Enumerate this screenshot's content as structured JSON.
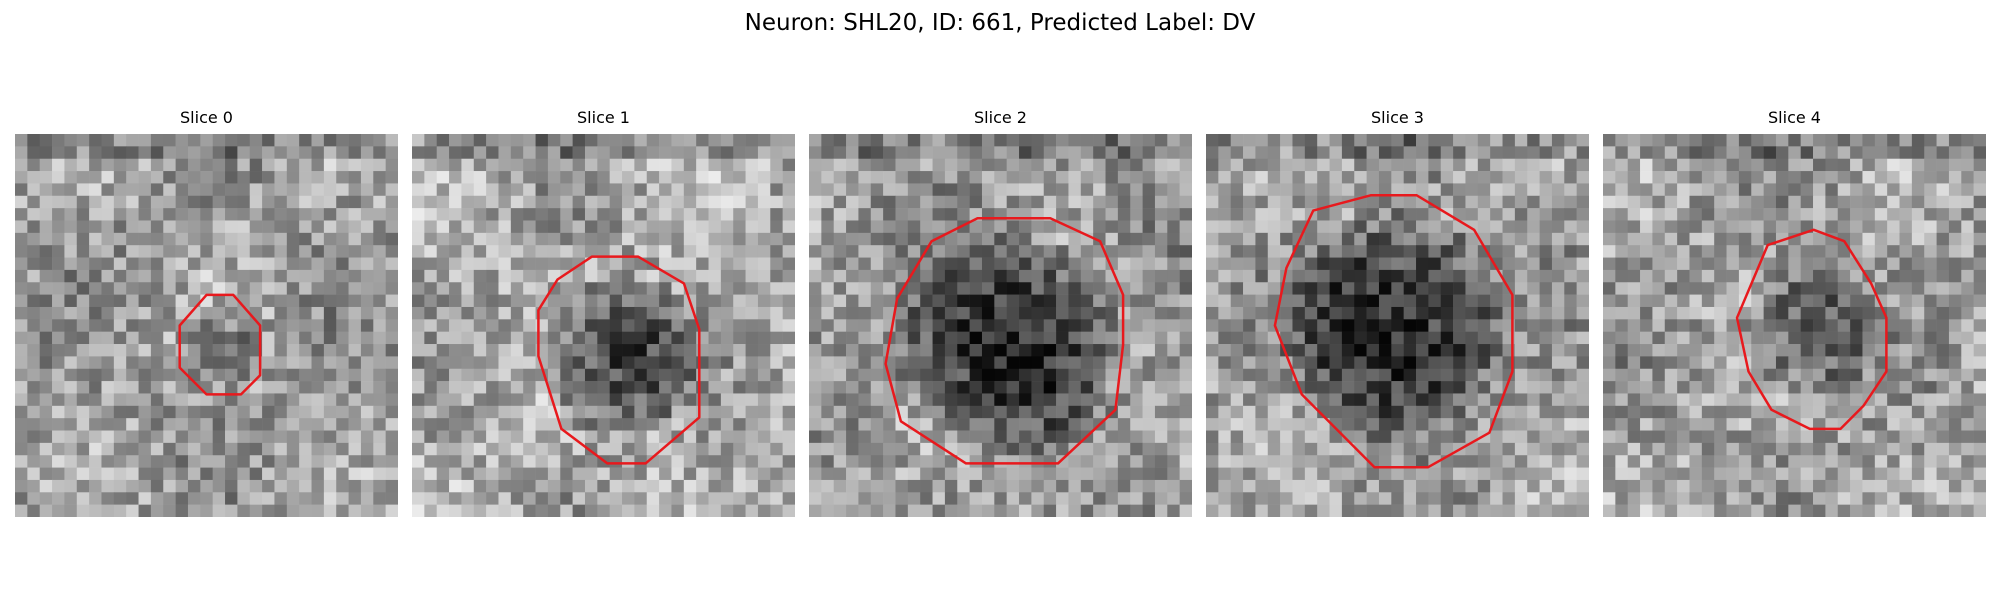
{
  "figure": {
    "title": "Neuron: SHL20, ID: 661, Predicted Label: DV"
  },
  "panels": [
    {
      "title": "Slice 0",
      "outline_color": "#e8191d",
      "outline_extent": [
        0.42,
        0.69
      ],
      "dark_region": false
    },
    {
      "title": "Slice 1",
      "outline_color": "#e8191d",
      "outline_extent": [
        0.34,
        0.83
      ],
      "dark_region": true
    },
    {
      "title": "Slice 2",
      "outline_color": "#e8191d",
      "outline_extent": [
        0.2,
        0.82
      ],
      "dark_region": true
    },
    {
      "title": "Slice 3",
      "outline_color": "#e8191d",
      "outline_extent": [
        0.18,
        0.81
      ],
      "dark_region": true
    },
    {
      "title": "Slice 4",
      "outline_color": "#e8191d",
      "outline_extent": [
        0.35,
        0.76
      ],
      "dark_region": true
    }
  ]
}
